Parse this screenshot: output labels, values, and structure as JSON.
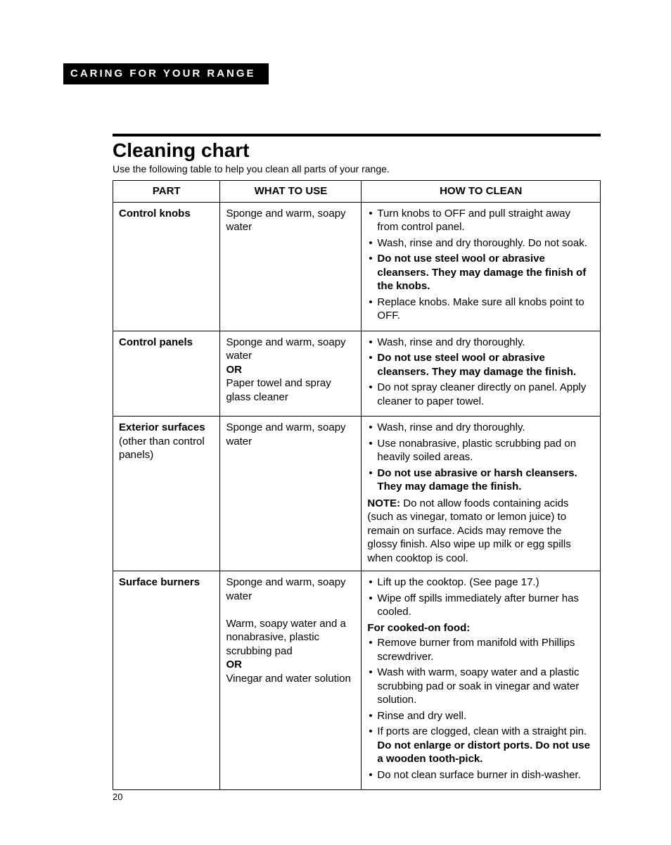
{
  "section_banner": "CARING FOR YOUR RANGE",
  "heading": "Cleaning chart",
  "subtitle": "Use the following table to help you clean all parts of your range.",
  "page_number": "20",
  "columns": {
    "part": "PART",
    "what": "WHAT TO USE",
    "how": "HOW TO CLEAN"
  },
  "rows": [
    {
      "part_bold": "Control knobs",
      "part_rest": "",
      "what_segments": [
        {
          "text": "Sponge and warm, soapy water",
          "bold": false
        }
      ],
      "how_items": [
        [
          {
            "text": "Turn knobs to OFF and pull straight away from control panel.",
            "bold": false
          }
        ],
        [
          {
            "text": "Wash, rinse and dry thoroughly. Do not soak.",
            "bold": false
          }
        ],
        [
          {
            "text": "Do not use steel wool or abrasive cleansers. They may damage the finish of the knobs.",
            "bold": true
          }
        ],
        [
          {
            "text": "Replace knobs. Make sure all knobs point to OFF.",
            "bold": false
          }
        ]
      ],
      "how_note": null,
      "how_subhead": null,
      "how_items2": []
    },
    {
      "part_bold": "Control panels",
      "part_rest": "",
      "what_segments": [
        {
          "text": "Sponge and warm, soapy water",
          "bold": false
        },
        {
          "text": "OR",
          "bold": true
        },
        {
          "text": "Paper towel and spray glass cleaner",
          "bold": false
        }
      ],
      "how_items": [
        [
          {
            "text": "Wash, rinse and dry thoroughly.",
            "bold": false
          }
        ],
        [
          {
            "text": "Do not use steel wool or abrasive cleansers. They may damage the finish.",
            "bold": true
          }
        ],
        [
          {
            "text": "Do not spray cleaner directly on panel. Apply cleaner to paper towel.",
            "bold": false
          }
        ]
      ],
      "how_note": null,
      "how_subhead": null,
      "how_items2": []
    },
    {
      "part_bold": "Exterior surfaces",
      "part_rest": " (other than control panels)",
      "what_segments": [
        {
          "text": "Sponge and warm, soapy water",
          "bold": false
        }
      ],
      "how_items": [
        [
          {
            "text": "Wash, rinse and dry thoroughly.",
            "bold": false
          }
        ],
        [
          {
            "text": "Use nonabrasive, plastic scrubbing pad on heavily soiled areas.",
            "bold": false
          }
        ],
        [
          {
            "text": "Do not use abrasive or harsh cleansers. They may damage the finish.",
            "bold": true
          }
        ]
      ],
      "how_note": {
        "label": "NOTE:",
        "text": " Do not allow foods containing acids (such as vinegar, tomato or lemon juice) to remain on surface. Acids may remove the glossy finish. Also wipe up milk or egg spills when cooktop is cool."
      },
      "how_subhead": null,
      "how_items2": []
    },
    {
      "part_bold": "Surface burners",
      "part_rest": "",
      "what_segments": [
        {
          "text": "Sponge and warm, soapy water",
          "bold": false
        },
        {
          "text": " ",
          "bold": false
        },
        {
          "text": "Warm, soapy water and a nonabrasive, plastic scrubbing pad",
          "bold": false
        },
        {
          "text": "OR",
          "bold": true
        },
        {
          "text": "Vinegar and water solution",
          "bold": false
        }
      ],
      "how_items": [
        [
          {
            "text": "Lift up the cooktop. (See page 17.)",
            "bold": false
          }
        ],
        [
          {
            "text": "Wipe off spills immediately after burner has cooled.",
            "bold": false
          }
        ]
      ],
      "how_note": null,
      "how_subhead": "For cooked-on food:",
      "how_items2": [
        [
          {
            "text": "Remove burner from manifold with Phillips screwdriver.",
            "bold": false
          }
        ],
        [
          {
            "text": "Wash with warm, soapy water and a plastic scrubbing pad or soak in vinegar and water solution.",
            "bold": false
          }
        ],
        [
          {
            "text": "Rinse and dry well.",
            "bold": false
          }
        ],
        [
          {
            "text": "If ports are clogged, clean with a straight pin. ",
            "bold": false
          },
          {
            "text": "Do not enlarge or distort ports. Do not use a wooden tooth-pick.",
            "bold": true
          }
        ],
        [
          {
            "text": "Do not clean surface burner in dish-washer.",
            "bold": false
          }
        ]
      ]
    }
  ]
}
